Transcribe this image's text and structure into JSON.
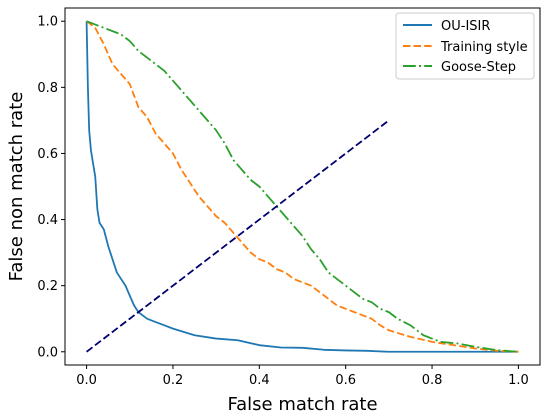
{
  "chart_data": {
    "type": "line",
    "title": "",
    "xlabel": "False match rate",
    "ylabel": "False non match rate",
    "xlim": [
      -0.05,
      1.05
    ],
    "ylim": [
      -0.04,
      1.04
    ],
    "xticks": [
      0.0,
      0.2,
      0.4,
      0.6,
      0.8,
      1.0
    ],
    "xtick_labels": [
      "0.0",
      "0.2",
      "0.4",
      "0.6",
      "0.8",
      "1.0"
    ],
    "yticks": [
      0.0,
      0.2,
      0.4,
      0.6,
      0.8,
      1.0
    ],
    "ytick_labels": [
      "0.0",
      "0.2",
      "0.4",
      "0.6",
      "0.8",
      "1.0"
    ],
    "grid": false,
    "legend": "top-right",
    "series": [
      {
        "name": "OU-ISIR",
        "color": "#1f77b4",
        "style": "solid",
        "x": [
          0.0,
          0.003,
          0.006,
          0.01,
          0.015,
          0.02,
          0.025,
          0.03,
          0.035,
          0.04,
          0.05,
          0.06,
          0.07,
          0.08,
          0.09,
          0.1,
          0.11,
          0.12,
          0.13,
          0.14,
          0.16,
          0.18,
          0.2,
          0.25,
          0.3,
          0.35,
          0.4,
          0.45,
          0.5,
          0.55,
          0.6,
          0.65,
          0.7,
          0.8,
          0.9,
          1.0
        ],
        "y": [
          1.0,
          0.8,
          0.67,
          0.61,
          0.57,
          0.53,
          0.43,
          0.39,
          0.38,
          0.37,
          0.32,
          0.28,
          0.24,
          0.22,
          0.2,
          0.17,
          0.14,
          0.12,
          0.11,
          0.1,
          0.09,
          0.08,
          0.07,
          0.05,
          0.04,
          0.035,
          0.02,
          0.013,
          0.012,
          0.006,
          0.004,
          0.003,
          0.0,
          0.0,
          0.0,
          0.0
        ]
      },
      {
        "name": "Training style",
        "color": "#ff7f0e",
        "style": "dashed",
        "x": [
          0.0,
          0.02,
          0.04,
          0.06,
          0.08,
          0.1,
          0.12,
          0.14,
          0.16,
          0.18,
          0.2,
          0.22,
          0.24,
          0.26,
          0.28,
          0.3,
          0.32,
          0.34,
          0.36,
          0.38,
          0.4,
          0.42,
          0.44,
          0.46,
          0.48,
          0.5,
          0.52,
          0.54,
          0.56,
          0.58,
          0.6,
          0.62,
          0.64,
          0.66,
          0.68,
          0.7,
          0.75,
          0.8,
          0.85,
          0.9,
          0.95,
          1.0
        ],
        "y": [
          1.0,
          0.98,
          0.93,
          0.87,
          0.84,
          0.81,
          0.74,
          0.71,
          0.66,
          0.63,
          0.6,
          0.55,
          0.51,
          0.47,
          0.44,
          0.41,
          0.39,
          0.36,
          0.33,
          0.3,
          0.28,
          0.27,
          0.25,
          0.24,
          0.22,
          0.21,
          0.2,
          0.18,
          0.16,
          0.14,
          0.13,
          0.12,
          0.11,
          0.1,
          0.08,
          0.065,
          0.045,
          0.03,
          0.02,
          0.01,
          0.003,
          0.0
        ]
      },
      {
        "name": "Goose-Step",
        "color": "#2ca02c",
        "style": "dashdot",
        "x": [
          0.0,
          0.02,
          0.04,
          0.06,
          0.08,
          0.1,
          0.12,
          0.14,
          0.16,
          0.18,
          0.2,
          0.22,
          0.24,
          0.26,
          0.28,
          0.3,
          0.32,
          0.34,
          0.36,
          0.38,
          0.4,
          0.42,
          0.44,
          0.46,
          0.48,
          0.5,
          0.52,
          0.54,
          0.56,
          0.58,
          0.6,
          0.62,
          0.64,
          0.66,
          0.68,
          0.7,
          0.72,
          0.75,
          0.78,
          0.82,
          0.86,
          0.9,
          0.95,
          1.0
        ],
        "y": [
          1.0,
          0.99,
          0.98,
          0.97,
          0.96,
          0.94,
          0.91,
          0.89,
          0.87,
          0.85,
          0.82,
          0.79,
          0.76,
          0.73,
          0.7,
          0.67,
          0.63,
          0.58,
          0.55,
          0.52,
          0.5,
          0.47,
          0.44,
          0.41,
          0.38,
          0.35,
          0.31,
          0.28,
          0.24,
          0.22,
          0.2,
          0.18,
          0.16,
          0.15,
          0.13,
          0.12,
          0.1,
          0.08,
          0.05,
          0.03,
          0.025,
          0.015,
          0.005,
          0.0
        ]
      },
      {
        "name": "",
        "color": "#00006e",
        "style": "dashed",
        "x": [
          0.0,
          0.7
        ],
        "y": [
          0.0,
          0.7
        ]
      }
    ]
  }
}
